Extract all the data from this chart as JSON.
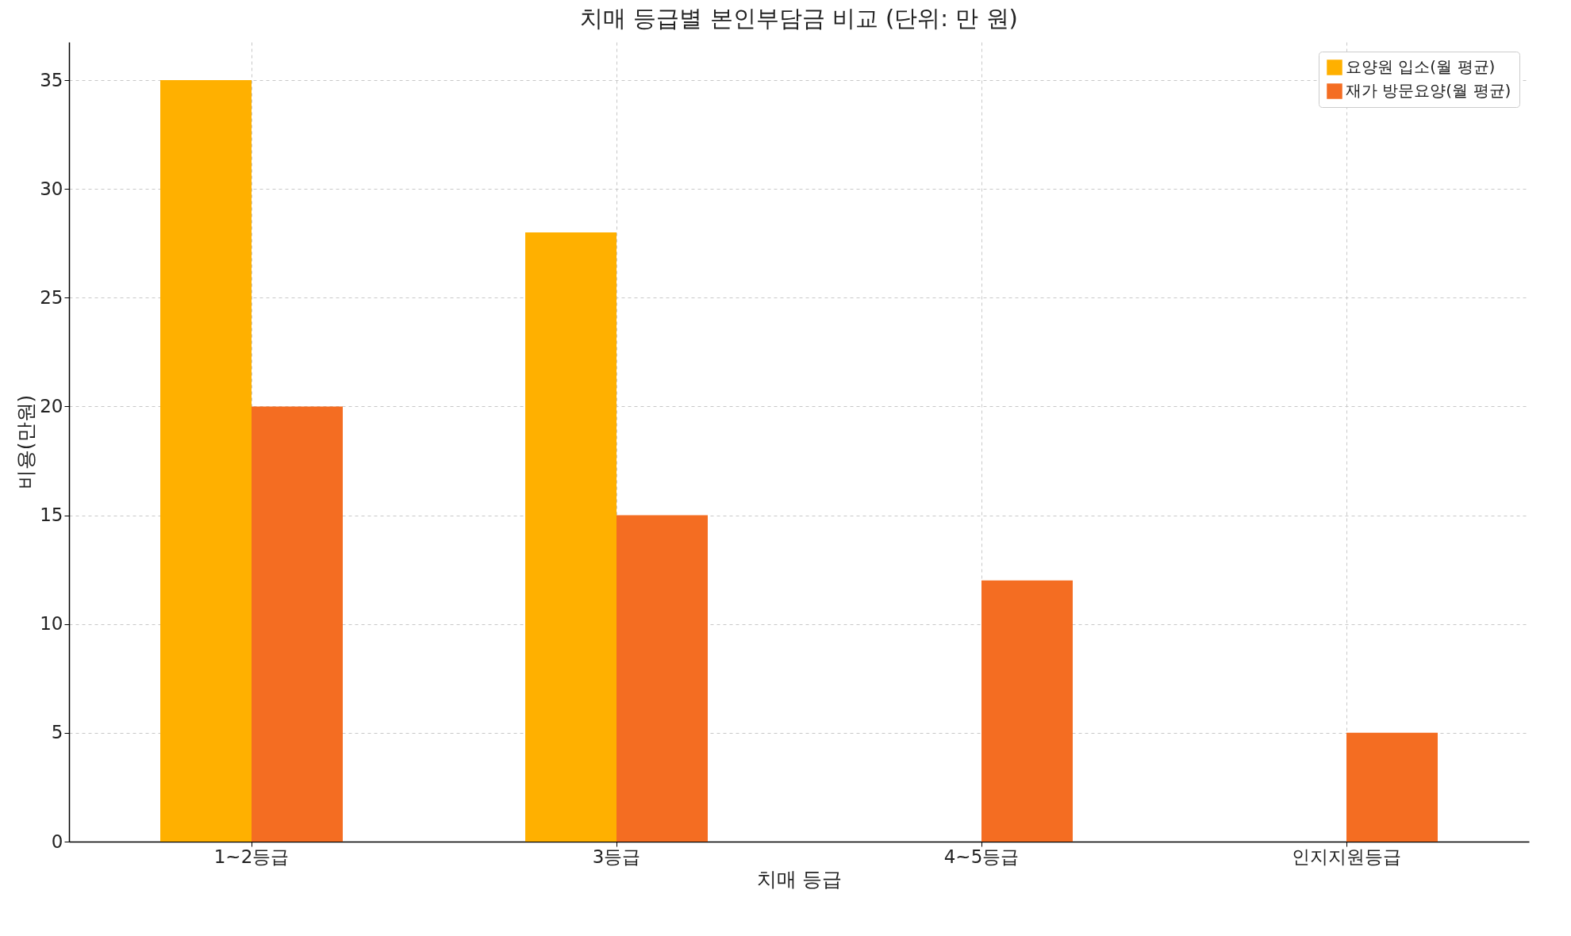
{
  "chart_data": {
    "type": "bar",
    "title": "치매 등급별 본인부담금 비교 (단위: 만 원)",
    "xlabel": "치매 등급",
    "ylabel": "비용(만원)",
    "categories": [
      "1~2등급",
      "3등급",
      "4~5등급",
      "인지지원등급"
    ],
    "series": [
      {
        "name": "요양원 입소(월 평균)",
        "color": "#ffb000",
        "values": [
          35,
          28,
          0,
          0
        ]
      },
      {
        "name": "재가 방문요양(월 평균)",
        "color": "#f46d22",
        "values": [
          20,
          15,
          12,
          5
        ]
      }
    ],
    "ylim": [
      0,
      36.75
    ],
    "yticks": [
      0,
      5,
      10,
      15,
      20,
      25,
      30,
      35
    ],
    "grid": true,
    "legend": "top right"
  }
}
